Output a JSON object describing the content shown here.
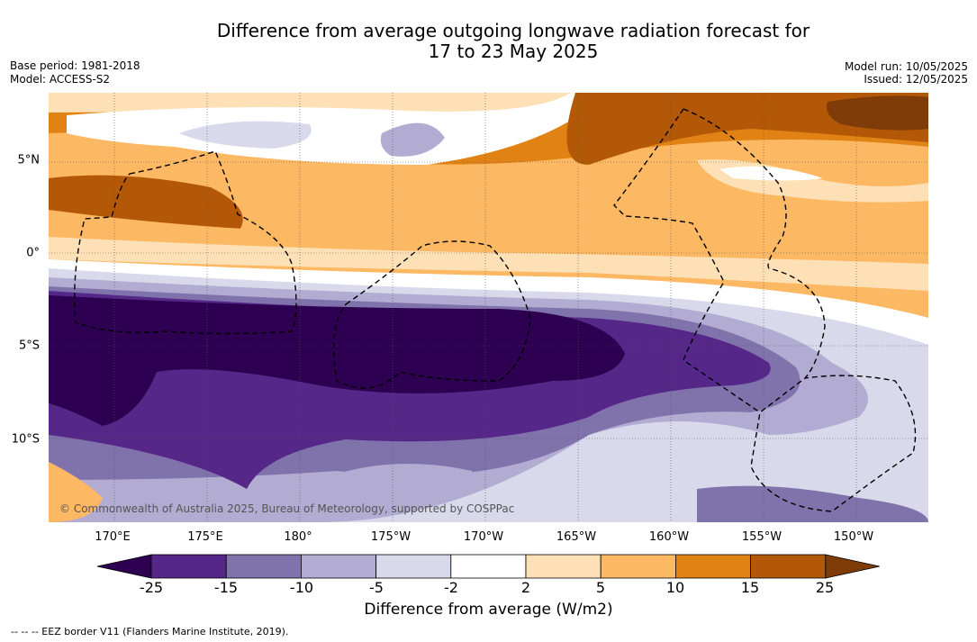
{
  "title_line1": "Difference from average outgoing longwave radiation forecast for",
  "title_line2": "17 to 23 May 2025",
  "base_period": "Base period: 1981-2018",
  "model": "Model: ACCESS-S2",
  "model_run": "Model run: 10/05/2025",
  "issued": "Issued: 12/05/2025",
  "lon_ticks": [
    "170°E",
    "175°E",
    "180°",
    "175°W",
    "170°W",
    "165°W",
    "160°W",
    "155°W",
    "150°W"
  ],
  "lat_ticks": [
    "5°N",
    "0°",
    "5°S",
    "10°S"
  ],
  "copyright": "© Commonwealth of Australia 2025, Bureau of Meteorology, supported by COSPPac",
  "colorbar": {
    "label": "Difference from average (W/m2)",
    "ticks": [
      "-25",
      "-15",
      "-10",
      "-5",
      "-2",
      "2",
      "5",
      "10",
      "15",
      "25"
    ],
    "colors": {
      "below": "#2d0051",
      "bins": [
        "#542788",
        "#8073ac",
        "#b2abd2",
        "#d8daeb",
        "#ffffff",
        "#fee0b6",
        "#fdb863",
        "#e08214",
        "#b35806"
      ],
      "above": "#7f3b08"
    }
  },
  "footnote": "-- -- -- EEZ border V11 (Flanders Marine Institute, 2019)."
}
